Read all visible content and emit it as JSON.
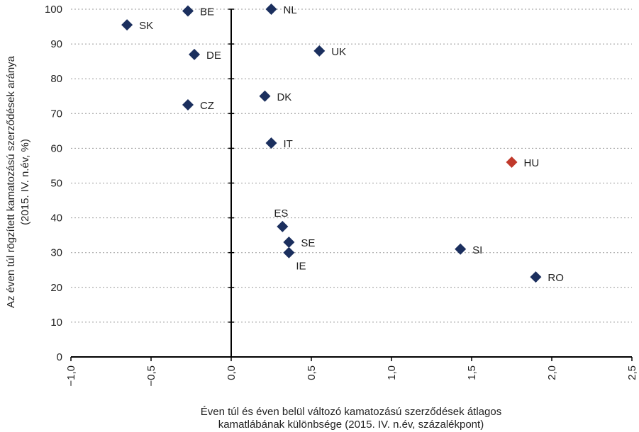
{
  "chart_data": {
    "type": "scatter",
    "xlabel": [
      "Éven túl és éven belül változó kamatozású szerződések átlagos",
      "kamatlábának különbsége (2015. IV. n.év, százalékpont)"
    ],
    "ylabel": [
      "Az éven túl rögzített kamatozású szerződések aránya",
      "(2015. IV. n.év, %)"
    ],
    "xlim": [
      -1.0,
      2.5
    ],
    "ylim": [
      0,
      100
    ],
    "grid": "horizontal",
    "x_ticks": [
      -1.0,
      -0.5,
      0.0,
      0.5,
      1.0,
      1.5,
      2.0,
      2.5
    ],
    "x_tick_labels": [
      "−1,0",
      "−0,5",
      "0,0",
      "0,5",
      "1,0",
      "1,5",
      "2,0",
      "2,5"
    ],
    "y_ticks": [
      0,
      10,
      20,
      30,
      40,
      50,
      60,
      70,
      80,
      90,
      100
    ],
    "y_tick_labels": [
      "0",
      "10",
      "20",
      "30",
      "40",
      "50",
      "60",
      "70",
      "80",
      "90",
      "100"
    ],
    "colors": {
      "default": "#1b2f5e",
      "highlight": "#c0392b"
    },
    "points": [
      {
        "label": "NL",
        "x": 0.25,
        "y": 100.0,
        "highlight": false,
        "label_pos": "right"
      },
      {
        "label": "BE",
        "x": -0.27,
        "y": 99.5,
        "highlight": false,
        "label_pos": "right"
      },
      {
        "label": "SK",
        "x": -0.65,
        "y": 95.5,
        "highlight": false,
        "label_pos": "right"
      },
      {
        "label": "DE",
        "x": -0.23,
        "y": 87.0,
        "highlight": false,
        "label_pos": "right"
      },
      {
        "label": "UK",
        "x": 0.55,
        "y": 88.0,
        "highlight": false,
        "label_pos": "right"
      },
      {
        "label": "DK",
        "x": 0.21,
        "y": 75.0,
        "highlight": false,
        "label_pos": "right"
      },
      {
        "label": "CZ",
        "x": -0.27,
        "y": 72.5,
        "highlight": false,
        "label_pos": "right"
      },
      {
        "label": "IT",
        "x": 0.25,
        "y": 61.5,
        "highlight": false,
        "label_pos": "right"
      },
      {
        "label": "HU",
        "x": 1.75,
        "y": 56.0,
        "highlight": true,
        "label_pos": "right"
      },
      {
        "label": "ES",
        "x": 0.32,
        "y": 37.5,
        "highlight": false,
        "label_pos": "above"
      },
      {
        "label": "SE",
        "x": 0.36,
        "y": 33.0,
        "highlight": false,
        "label_pos": "right"
      },
      {
        "label": "SI",
        "x": 1.43,
        "y": 31.0,
        "highlight": false,
        "label_pos": "right"
      },
      {
        "label": "IE",
        "x": 0.36,
        "y": 30.0,
        "highlight": false,
        "label_pos": "below"
      },
      {
        "label": "RO",
        "x": 1.9,
        "y": 23.0,
        "highlight": false,
        "label_pos": "right"
      }
    ]
  }
}
